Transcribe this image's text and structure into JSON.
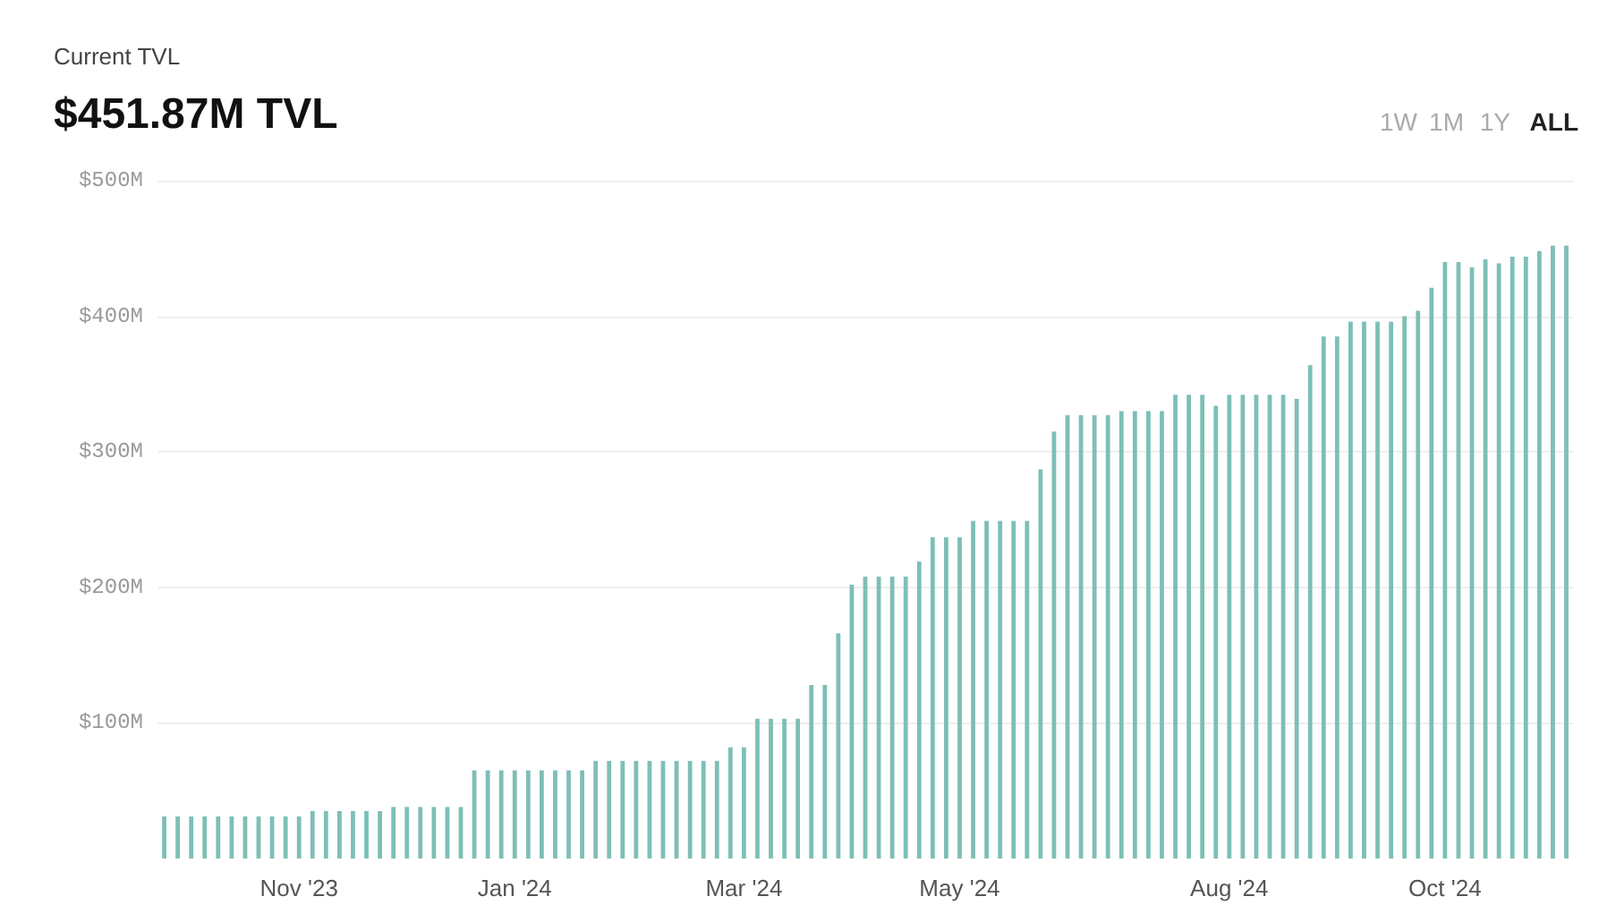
{
  "chart_data": {
    "type": "bar",
    "subtitle": "Current TVL",
    "title": "$451.87M TVL",
    "annotations": [
      "1W",
      "1M",
      "1Y",
      "ALL"
    ],
    "categories": [
      null,
      null,
      null,
      null,
      null,
      null,
      null,
      null,
      null,
      null,
      "Nov '23",
      null,
      null,
      null,
      null,
      null,
      null,
      null,
      null,
      null,
      null,
      null,
      null,
      null,
      null,
      null,
      "Jan '24",
      null,
      null,
      null,
      null,
      null,
      null,
      null,
      null,
      null,
      null,
      null,
      null,
      null,
      null,
      null,
      null,
      "Mar '24",
      null,
      null,
      null,
      null,
      null,
      null,
      null,
      null,
      null,
      null,
      null,
      null,
      null,
      null,
      null,
      "May '24",
      null,
      null,
      null,
      null,
      null,
      null,
      null,
      null,
      null,
      null,
      null,
      null,
      null,
      null,
      null,
      null,
      null,
      null,
      null,
      "Aug '24",
      null,
      null,
      null,
      null,
      null,
      null,
      null,
      null,
      null,
      null,
      null,
      null,
      null,
      null,
      null,
      "Oct '24",
      null,
      null,
      null,
      null,
      null,
      null,
      null,
      null,
      null
    ],
    "values": [
      31,
      31,
      31,
      31,
      31,
      31,
      31,
      31,
      31,
      31,
      31,
      35,
      35,
      35,
      35,
      35,
      35,
      38,
      38,
      38,
      38,
      38,
      38,
      65,
      65,
      65,
      65,
      65,
      65,
      65,
      65,
      65,
      72,
      72,
      72,
      72,
      72,
      72,
      72,
      72,
      72,
      72,
      82,
      82,
      103,
      103,
      103,
      103,
      128,
      128,
      166,
      202,
      208,
      208,
      208,
      208,
      219,
      237,
      237,
      237,
      249,
      249,
      249,
      249,
      249,
      287,
      315,
      327,
      327,
      327,
      327,
      330,
      330,
      330,
      330,
      342,
      342,
      342,
      334,
      342,
      342,
      342,
      342,
      342,
      339,
      364,
      385,
      385,
      396,
      396,
      396,
      396,
      400,
      404,
      421,
      440,
      440,
      436,
      442,
      439,
      444,
      444,
      448,
      452,
      452
    ],
    "color": "#7dbfb6",
    "ylim": [
      0,
      500
    ],
    "yticks": [
      {
        "value": 100,
        "label": "$100M"
      },
      {
        "value": 200,
        "label": "$200M"
      },
      {
        "value": 300,
        "label": "$300M"
      },
      {
        "value": 400,
        "label": "$400M"
      },
      {
        "value": 500,
        "label": "$500M"
      }
    ],
    "grid": "y"
  }
}
